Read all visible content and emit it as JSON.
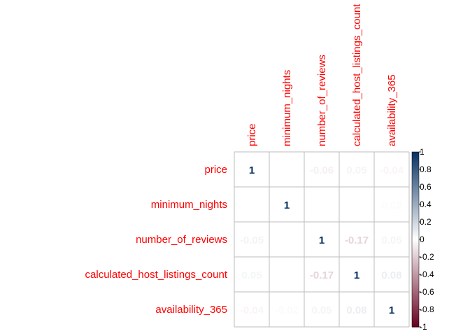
{
  "chart_data": {
    "type": "heatmap",
    "title": "",
    "variables": [
      "price",
      "minimum_nights",
      "number_of_reviews",
      "calculated_host_listings_count",
      "availability_365"
    ],
    "matrix": [
      [
        1,
        null,
        -0.06,
        0.05,
        -0.04
      ],
      [
        null,
        1,
        null,
        null,
        0.02
      ],
      [
        -0.05,
        null,
        1,
        -0.17,
        0.05
      ],
      [
        0.05,
        null,
        -0.17,
        1,
        0.08
      ],
      [
        -0.04,
        -0.02,
        0.05,
        0.08,
        1
      ]
    ],
    "value_labels": [
      [
        "1",
        "",
        "-0.06",
        "0.05",
        "-0.04"
      ],
      [
        "",
        "1",
        "",
        "",
        "0.02"
      ],
      [
        "-0.05",
        "",
        "1",
        "-0.17",
        "0.05"
      ],
      [
        "0.05",
        "",
        "-0.17",
        "1",
        "0.08"
      ],
      [
        "-0.04",
        "-0.02",
        "0.05",
        "0.08",
        "1"
      ]
    ],
    "colorbar": {
      "range": [
        -1,
        1
      ],
      "ticks": [
        "1",
        "0.8",
        "0.6",
        "0.4",
        "0.2",
        "0",
        "-0.2",
        "-0.4",
        "-0.6",
        "-0.8",
        "-1"
      ],
      "colors": {
        "negative": "#67001f",
        "neutral": "#ffffff",
        "positive": "#053061"
      }
    },
    "label_color": "#ff0000",
    "grid_color": "#bebebe"
  }
}
